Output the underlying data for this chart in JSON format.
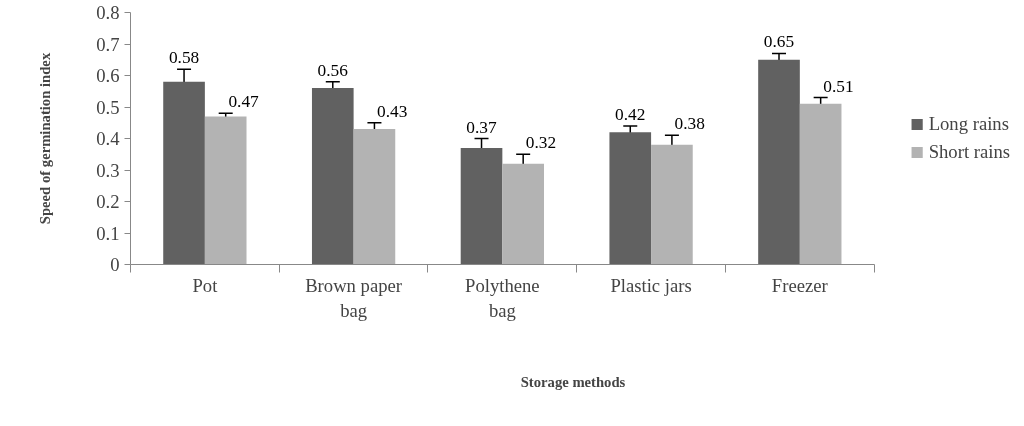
{
  "chart_data": {
    "type": "bar",
    "xlabel": "Storage methods",
    "ylabel": "Speed of germination index",
    "categories": [
      "Pot",
      "Brown paper bag",
      "Polythene bag",
      "Plastic jars",
      "Freezer"
    ],
    "series": [
      {
        "name": "Long rains",
        "color": "#616161",
        "values": [
          0.58,
          0.56,
          0.37,
          0.42,
          0.65
        ],
        "errors": [
          0.04,
          0.02,
          0.03,
          0.02,
          0.02
        ]
      },
      {
        "name": "Short rains",
        "color": "#b3b3b3",
        "values": [
          0.47,
          0.43,
          0.32,
          0.38,
          0.51
        ],
        "errors": [
          0.01,
          0.02,
          0.03,
          0.03,
          0.02
        ]
      }
    ],
    "ylim": [
      0,
      0.8
    ],
    "yticks": [
      0,
      0.1,
      0.2,
      0.3,
      0.4,
      0.5,
      0.6,
      0.7,
      0.8
    ],
    "data_labels": true,
    "legend": "right",
    "grid": false
  }
}
